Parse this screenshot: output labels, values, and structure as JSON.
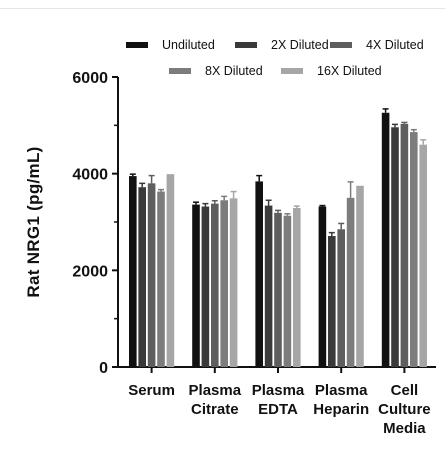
{
  "chart_data": {
    "type": "bar",
    "categories": [
      [
        "Serum"
      ],
      [
        "Plasma",
        "Citrate"
      ],
      [
        "Plasma",
        "EDTA"
      ],
      [
        "Plasma",
        "Heparin"
      ],
      [
        "Cell",
        "Culture",
        "Media"
      ]
    ],
    "series": [
      {
        "name": "Undiluted",
        "color": "#111111",
        "values": [
          3950,
          3360,
          3840,
          3320,
          5260
        ],
        "errors": [
          40,
          50,
          120,
          20,
          80
        ]
      },
      {
        "name": "2X Diluted",
        "color": "#3a3a3a",
        "values": [
          3720,
          3320,
          3340,
          2710,
          4960
        ],
        "errors": [
          80,
          60,
          110,
          70,
          60
        ]
      },
      {
        "name": "4X Diluted",
        "color": "#5e5e5e",
        "values": [
          3800,
          3380,
          3190,
          2850,
          5030
        ],
        "errors": [
          160,
          60,
          50,
          120,
          30
        ]
      },
      {
        "name": "8X Diluted",
        "color": "#7c7c7c",
        "values": [
          3630,
          3450,
          3130,
          3500,
          4860
        ],
        "errors": [
          40,
          80,
          40,
          330,
          50
        ]
      },
      {
        "name": "16X Diluted",
        "color": "#a6a6a6",
        "values": [
          3990,
          3490,
          3290,
          3750,
          4600
        ],
        "errors": [
          0,
          140,
          40,
          0,
          100
        ]
      }
    ],
    "ylabel": "Rat NRG1 (pg/mL)",
    "xlabel": "",
    "ylim": [
      0,
      6000
    ],
    "yticks": [
      "0",
      "2000",
      "4000",
      "6000"
    ],
    "legend": "top",
    "grid": false
  }
}
